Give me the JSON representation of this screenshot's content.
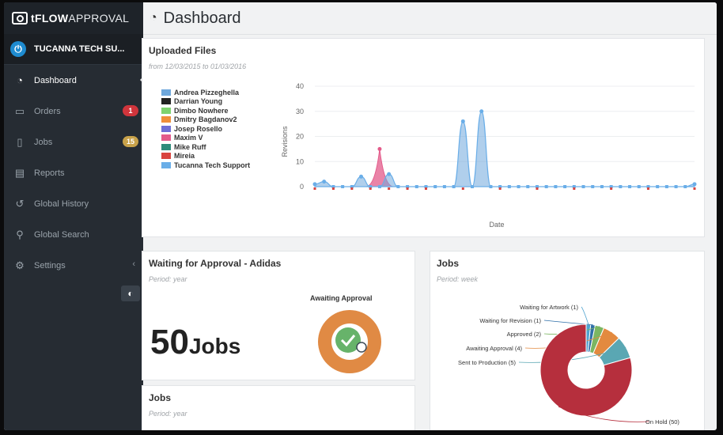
{
  "app": {
    "brand_bold": "tFLOW",
    "brand_light": "APPROVAL",
    "account": "TUCANNA TECH SU..."
  },
  "sidebar": {
    "items": [
      {
        "label": "Dashboard",
        "icon": "gauge-icon",
        "glyph": "◔"
      },
      {
        "label": "Orders",
        "icon": "folder-icon",
        "glyph": "▭",
        "badge": "1"
      },
      {
        "label": "Jobs",
        "icon": "file-icon",
        "glyph": "▯",
        "badge": "15"
      },
      {
        "label": "Reports",
        "icon": "report-icon",
        "glyph": "▤"
      },
      {
        "label": "Global History",
        "icon": "history-icon",
        "glyph": "↺"
      },
      {
        "label": "Global Search",
        "icon": "search-icon",
        "glyph": "⚲"
      },
      {
        "label": "Settings",
        "icon": "gears-icon",
        "glyph": "⚙"
      }
    ]
  },
  "header": {
    "title": "Dashboard"
  },
  "uploaded": {
    "title": "Uploaded Files",
    "period": "from 12/03/2015 to 01/03/2016",
    "legend": [
      {
        "name": "Andrea Pizzeghella",
        "color": "#6fa8dc"
      },
      {
        "name": "Darrian Young",
        "color": "#222222"
      },
      {
        "name": "Dimbo Nowhere",
        "color": "#7ed36f"
      },
      {
        "name": "Dmitry Bagdanov2",
        "color": "#ef8f3a"
      },
      {
        "name": "Josep Rosello",
        "color": "#6e6fd6"
      },
      {
        "name": "Maxim V",
        "color": "#e35a8a"
      },
      {
        "name": "Mike Ruff",
        "color": "#2f8b7b"
      },
      {
        "name": "Mireia",
        "color": "#d9443f"
      },
      {
        "name": "Tucanna Tech Support",
        "color": "#6aaee8"
      }
    ]
  },
  "chart_data": {
    "type": "area",
    "xlabel": "Date",
    "ylabel": "Revisions",
    "ylim": [
      0,
      40
    ],
    "yticks": [
      0,
      10,
      20,
      30,
      40
    ],
    "series": [
      {
        "name": "Tucanna Tech Support",
        "x_index": [
          0,
          1,
          2,
          3,
          4,
          5,
          6,
          7,
          8,
          9,
          10,
          11,
          12,
          13,
          14,
          15,
          16,
          17,
          18,
          19,
          20,
          21,
          22,
          23,
          24,
          25,
          26,
          27,
          28,
          29,
          30,
          31,
          32,
          33,
          34,
          35,
          36,
          37,
          38,
          39,
          40,
          41
        ],
        "values": [
          1,
          2,
          0,
          0,
          0,
          4,
          0,
          0,
          5,
          0,
          0,
          0,
          0,
          0,
          0,
          0,
          26,
          0,
          30,
          0,
          0,
          0,
          0,
          0,
          0,
          0,
          0,
          0,
          0,
          0,
          0,
          0,
          0,
          0,
          0,
          0,
          0,
          0,
          0,
          0,
          0,
          1
        ]
      },
      {
        "name": "Maxim V",
        "x_index": [
          7
        ],
        "values": [
          15
        ]
      },
      {
        "name": "Mireia",
        "x_index": [
          0,
          2,
          4,
          6,
          8,
          10,
          12,
          16,
          20,
          24,
          28,
          32,
          36,
          41
        ],
        "values": [
          1,
          0,
          0,
          0,
          0,
          0,
          0,
          0,
          0,
          0,
          1,
          0,
          1,
          0
        ]
      }
    ]
  },
  "waiting": {
    "title": "Waiting for Approval - Adidas",
    "period": "Period: year",
    "count": "50",
    "unit": "Jobs",
    "donut_label": "Awaiting Approval"
  },
  "jobs_right": {
    "title": "Jobs",
    "period": "Period: week",
    "chart_type": "donut",
    "slices": [
      {
        "label": "Waiting for Artwork (1)",
        "value": 1,
        "color": "#4fa3cf"
      },
      {
        "label": "Waiting for Revision (1)",
        "value": 1,
        "color": "#2f6fa8"
      },
      {
        "label": "Approved (2)",
        "value": 2,
        "color": "#7bb662"
      },
      {
        "label": "Awaiting Approval (4)",
        "value": 4,
        "color": "#e38a3f"
      },
      {
        "label": "Sent to Production (5)",
        "value": 5,
        "color": "#5aa7b3"
      },
      {
        "label": "On Hold (50)",
        "value": 50,
        "color": "#b62f3d"
      }
    ]
  },
  "jobs_left": {
    "title": "Jobs",
    "period": "Period: year"
  }
}
